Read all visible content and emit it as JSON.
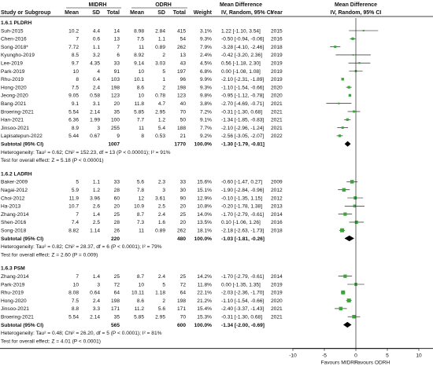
{
  "chart_data": {
    "type": "forest",
    "headers": {
      "group1": "MIDRH",
      "group2": "ODRH",
      "study": "Study or Subgroup",
      "mean": "Mean",
      "sd": "SD",
      "total": "Total",
      "weight": "Weight",
      "md_title": "Mean Difference",
      "md_sub": "IV, Random, 95% CI",
      "year": "Year"
    },
    "subgroups": [
      {
        "title": "1.6.1 PLDRH",
        "studies": [
          {
            "name": "Suh-2015",
            "m1": "10.2",
            "sd1": "4.4",
            "n1": "14",
            "m2": "8.98",
            "sd2": "2.84",
            "n2": "415",
            "w": "3.1%",
            "ci": "1.22 [-1.10, 3.54]",
            "year": "2015",
            "md": 1.22,
            "lo": -1.1,
            "hi": 3.54
          },
          {
            "name": "Chen-2016",
            "m1": "7",
            "sd1": "0.6",
            "n1": "13",
            "m2": "7.5",
            "sd2": "1.1",
            "n2": "54",
            "w": "9.3%",
            "ci": "-0.50 [-0.94, -0.06]",
            "year": "2016",
            "md": -0.5,
            "lo": -0.94,
            "hi": -0.06
          },
          {
            "name": "Song-2018*",
            "m1": "7.72",
            "sd1": "1.1",
            "n1": "7",
            "m2": "11",
            "sd2": "0.89",
            "n2": "262",
            "w": "7.9%",
            "ci": "-3.28 [-4.10, -2.46]",
            "year": "2018",
            "md": -3.28,
            "lo": -4.1,
            "hi": -2.46
          },
          {
            "name": "Kyungho-2019",
            "m1": "8.5",
            "sd1": "3.2",
            "n1": "6",
            "m2": "8.92",
            "sd2": "2",
            "n2": "13",
            "w": "2.4%",
            "ci": "-0.42 [-3.20, 2.36]",
            "year": "2019",
            "md": -0.42,
            "lo": -3.2,
            "hi": 2.36
          },
          {
            "name": "Lee-2019",
            "m1": "9.7",
            "sd1": "4.35",
            "n1": "33",
            "m2": "9.14",
            "sd2": "3.03",
            "n2": "43",
            "w": "4.5%",
            "ci": "0.56 [-1.18, 2.30]",
            "year": "2019",
            "md": 0.56,
            "lo": -1.18,
            "hi": 2.3
          },
          {
            "name": "Park-2019",
            "m1": "10",
            "sd1": "4",
            "n1": "91",
            "m2": "10",
            "sd2": "5",
            "n2": "197",
            "w": "6.8%",
            "ci": "0.00 [-1.08, 1.08]",
            "year": "2019",
            "md": 0.0,
            "lo": -1.08,
            "hi": 1.08
          },
          {
            "name": "Rhu-2019",
            "m1": "8",
            "sd1": "0.4",
            "n1": "103",
            "m2": "10.1",
            "sd2": "1",
            "n2": "96",
            "w": "9.9%",
            "ci": "-2.10 [-2.31, -1.89]",
            "year": "2019",
            "md": -2.1,
            "lo": -2.31,
            "hi": -1.89
          },
          {
            "name": "Hong-2020",
            "m1": "7.5",
            "sd1": "2.4",
            "n1": "198",
            "m2": "8.6",
            "sd2": "2",
            "n2": "198",
            "w": "9.3%",
            "ci": "-1.10 [-1.54, -0.66]",
            "year": "2020",
            "md": -1.1,
            "lo": -1.54,
            "hi": -0.66
          },
          {
            "name": "Jeong-2020",
            "m1": "9.05",
            "sd1": "0.58",
            "n1": "123",
            "m2": "10",
            "sd2": "0.78",
            "n2": "123",
            "w": "9.8%",
            "ci": "-0.95 [-1.12, -0.78]",
            "year": "2020",
            "md": -0.95,
            "lo": -1.12,
            "hi": -0.78
          },
          {
            "name": "Bang-2021",
            "m1": "9.1",
            "sd1": "3.1",
            "n1": "20",
            "m2": "11.8",
            "sd2": "4.7",
            "n2": "40",
            "w": "3.8%",
            "ci": "-2.70 [-4.69, -0.71]",
            "year": "2021",
            "md": -2.7,
            "lo": -4.69,
            "hi": -0.71
          },
          {
            "name": "Broering-2021",
            "m1": "5.54",
            "sd1": "2.14",
            "n1": "35",
            "m2": "5.85",
            "sd2": "2.95",
            "n2": "70",
            "w": "7.2%",
            "ci": "-0.31 [-1.30, 0.68]",
            "year": "2021",
            "md": -0.31,
            "lo": -1.3,
            "hi": 0.68
          },
          {
            "name": "Han-2021",
            "m1": "6.36",
            "sd1": "1.99",
            "n1": "100",
            "m2": "7.7",
            "sd2": "1.2",
            "n2": "50",
            "w": "9.1%",
            "ci": "-1.34 [-1.85, -0.83]",
            "year": "2021",
            "md": -1.34,
            "lo": -1.85,
            "hi": -0.83
          },
          {
            "name": "Jinsoo-2021",
            "m1": "8.9",
            "sd1": "3",
            "n1": "255",
            "m2": "11",
            "sd2": "5.4",
            "n2": "188",
            "w": "7.7%",
            "ci": "-2.10 [-2.96, -1.24]",
            "year": "2021",
            "md": -2.1,
            "lo": -2.96,
            "hi": -1.24
          },
          {
            "name": "Lapisatepun-2022",
            "m1": "5.44",
            "sd1": "0.67",
            "n1": "9",
            "m2": "8",
            "sd2": "0.53",
            "n2": "21",
            "w": "9.2%",
            "ci": "-2.56 [-3.05, -2.07]",
            "year": "2022",
            "md": -2.56,
            "lo": -3.05,
            "hi": -2.07
          }
        ],
        "subtotal": {
          "label": "Subtotal (95% CI)",
          "n1": "1007",
          "n2": "1770",
          "w": "100.0%",
          "ci": "-1.30 [-1.79, -0.81]",
          "md": -1.3,
          "lo": -1.79,
          "hi": -0.81
        },
        "het": "Heterogeneity: Tau² = 0.62; Chi² = 152.23, df = 13 (P < 0.00001); I² = 91%",
        "test": "Test for overall effect: Z = 5.18 (P < 0.00001)"
      },
      {
        "title": "1.6.2 LADRH",
        "studies": [
          {
            "name": "Baker-2009",
            "m1": "5",
            "sd1": "1.1",
            "n1": "33",
            "m2": "5.6",
            "sd2": "2.3",
            "n2": "33",
            "w": "15.6%",
            "ci": "-0.60 [-1.47, 0.27]",
            "year": "2009",
            "md": -0.6,
            "lo": -1.47,
            "hi": 0.27
          },
          {
            "name": "Nagai-2012",
            "m1": "5.9",
            "sd1": "1.2",
            "n1": "28",
            "m2": "7.8",
            "sd2": "3",
            "n2": "30",
            "w": "15.1%",
            "ci": "-1.90 [-2.84, -0.96]",
            "year": "2012",
            "md": -1.9,
            "lo": -2.84,
            "hi": -0.96
          },
          {
            "name": "Choi-2012",
            "m1": "11.9",
            "sd1": "3.96",
            "n1": "60",
            "m2": "12",
            "sd2": "3.61",
            "n2": "90",
            "w": "12.9%",
            "ci": "-0.10 [-1.35, 1.15]",
            "year": "2012",
            "md": -0.1,
            "lo": -1.35,
            "hi": 1.15
          },
          {
            "name": "Ha-2013",
            "m1": "10.7",
            "sd1": "2.6",
            "n1": "20",
            "m2": "10.9",
            "sd2": "2.5",
            "n2": "20",
            "w": "10.8%",
            "ci": "-0.20 [-1.78, 1.38]",
            "year": "2013",
            "md": -0.2,
            "lo": -1.78,
            "hi": 1.38
          },
          {
            "name": "Zhang-2014",
            "m1": "7",
            "sd1": "1.4",
            "n1": "25",
            "m2": "8.7",
            "sd2": "2.4",
            "n2": "25",
            "w": "14.0%",
            "ci": "-1.70 [-2.79, -0.61]",
            "year": "2014",
            "md": -1.7,
            "lo": -2.79,
            "hi": -0.61
          },
          {
            "name": "Shen-2016",
            "m1": "7.4",
            "sd1": "2.5",
            "n1": "28",
            "m2": "7.3",
            "sd2": "1.6",
            "n2": "20",
            "w": "13.5%",
            "ci": "0.10 [-1.06, 1.26]",
            "year": "2016",
            "md": 0.1,
            "lo": -1.06,
            "hi": 1.26
          },
          {
            "name": "Song-2018",
            "m1": "8.82",
            "sd1": "1.14",
            "n1": "26",
            "m2": "11",
            "sd2": "0.89",
            "n2": "262",
            "w": "18.1%",
            "ci": "-2.18 [-2.63, -1.73]",
            "year": "2018",
            "md": -2.18,
            "lo": -2.63,
            "hi": -1.73
          }
        ],
        "subtotal": {
          "label": "Subtotal (95% CI)",
          "n1": "220",
          "n2": "480",
          "w": "100.0%",
          "ci": "-1.03 [-1.81, -0.26]",
          "md": -1.03,
          "lo": -1.81,
          "hi": -0.26
        },
        "het": "Heterogeneity: Tau² = 0.82; Chi² = 28.37, df = 6 (P < 0.0001); I² = 79%",
        "test": "Test for overall effect: Z = 2.60 (P = 0.009)"
      },
      {
        "title": "1.6.3 PSM",
        "studies": [
          {
            "name": "Zhang-2014",
            "m1": "7",
            "sd1": "1.4",
            "n1": "25",
            "m2": "8.7",
            "sd2": "2.4",
            "n2": "25",
            "w": "14.2%",
            "ci": "-1.70 [-2.79, -0.61]",
            "year": "2014",
            "md": -1.7,
            "lo": -2.79,
            "hi": -0.61
          },
          {
            "name": "Park-2019",
            "m1": "10",
            "sd1": "3",
            "n1": "72",
            "m2": "10",
            "sd2": "5",
            "n2": "72",
            "w": "11.8%",
            "ci": "0.00 [-1.35, 1.35]",
            "year": "2019",
            "md": 0.0,
            "lo": -1.35,
            "hi": 1.35
          },
          {
            "name": "Rhu-2019",
            "m1": "8.08",
            "sd1": "0.64",
            "n1": "64",
            "m2": "10.11",
            "sd2": "1.18",
            "n2": "64",
            "w": "22.1%",
            "ci": "-2.03 [-2.36, -1.70]",
            "year": "2019",
            "md": -2.03,
            "lo": -2.36,
            "hi": -1.7
          },
          {
            "name": "Hong-2020",
            "m1": "7.5",
            "sd1": "2.4",
            "n1": "198",
            "m2": "8.6",
            "sd2": "2",
            "n2": "198",
            "w": "21.2%",
            "ci": "-1.10 [-1.54, -0.66]",
            "year": "2020",
            "md": -1.1,
            "lo": -1.54,
            "hi": -0.66
          },
          {
            "name": "Jinsoo-2021",
            "m1": "8.8",
            "sd1": "3.3",
            "n1": "171",
            "m2": "11.2",
            "sd2": "5.6",
            "n2": "171",
            "w": "15.4%",
            "ci": "-2.40 [-3.37, -1.43]",
            "year": "2021",
            "md": -2.4,
            "lo": -3.37,
            "hi": -1.43
          },
          {
            "name": "Broering-2021",
            "m1": "5.54",
            "sd1": "2.14",
            "n1": "35",
            "m2": "5.85",
            "sd2": "2.95",
            "n2": "70",
            "w": "15.3%",
            "ci": "-0.31 [-1.30, 0.68]",
            "year": "2021",
            "md": -0.31,
            "lo": -1.3,
            "hi": 0.68
          }
        ],
        "subtotal": {
          "label": "Subtotal (95% CI)",
          "n1": "565",
          "n2": "600",
          "w": "100.0%",
          "ci": "-1.34 [-2.00, -0.69]",
          "md": -1.34,
          "lo": -2.0,
          "hi": -0.69
        },
        "het": "Heterogeneity: Tau² = 0.48; Chi² = 26.20, df = 5 (P < 0.0001); I² = 81%",
        "test": "Test for overall effect: Z = 4.01 (P < 0.0001)"
      }
    ],
    "axis": {
      "min": -10,
      "max": 10,
      "ticks": [
        -10,
        -5,
        0,
        5,
        10
      ],
      "left_label": "Favours MIDRH",
      "right_label": "Favours ODRH"
    },
    "colors": {
      "marker": "#3aa63a",
      "diamond": "#000000",
      "text": "#111111"
    }
  }
}
